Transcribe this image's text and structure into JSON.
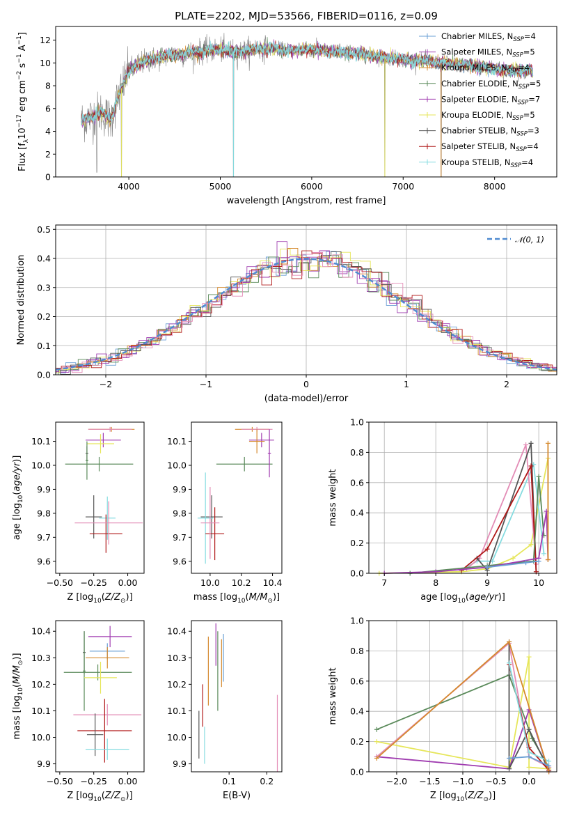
{
  "title": "PLATE=2202, MJD=53566, FIBERID=0116, z=0.09",
  "colors": {
    "CM": "#6a9fd4",
    "SM": "#a040b0",
    "KM": "#d58a2e",
    "CE": "#5a8a5a",
    "SE": "#a03cb0",
    "KE": "#e6e65a",
    "CS": "#555555",
    "SS": "#b01818",
    "KS": "#86dce0",
    "pink": "#e38cb6",
    "gray": "#808080",
    "fit": "#4e8ad0"
  },
  "chart_data": [
    {
      "id": "spectrum",
      "type": "line",
      "xlabel": "wavelength [Angstrom, rest frame]",
      "ylabel": "Flux [f_λ10^-17 erg cm^-2 s^-1 A^-1]",
      "xlim": [
        3200,
        8680
      ],
      "ylim": [
        0,
        13.2
      ],
      "xticks": [
        4000,
        5000,
        6000,
        7000,
        8000
      ],
      "yticks": [
        0,
        2,
        4,
        6,
        8,
        10,
        12
      ],
      "grid": false,
      "legend": {
        "position": "right",
        "entries": [
          {
            "base": "Chabrier MILES, N",
            "sub": "SSP",
            "tail": "=4",
            "color": "CM"
          },
          {
            "base": "Salpeter MILES, N",
            "sub": "SSP",
            "tail": "=5",
            "color": "SM"
          },
          {
            "base": "Kroupa MILES, N",
            "sub": "SSP",
            "tail": "=4",
            "color": "KM"
          },
          {
            "base": "Chabrier ELODIE, N",
            "sub": "SSP",
            "tail": "=5",
            "color": "CE"
          },
          {
            "base": "Salpeter ELODIE, N",
            "sub": "SSP",
            "tail": "=7",
            "color": "SE"
          },
          {
            "base": "Kroupa ELODIE, N",
            "sub": "SSP",
            "tail": "=5",
            "color": "KE"
          },
          {
            "base": "Chabrier STELIB, N",
            "sub": "SSP",
            "tail": "=3",
            "color": "CS"
          },
          {
            "base": "Salpeter STELIB, N",
            "sub": "SSP",
            "tail": "=4",
            "color": "SS"
          },
          {
            "base": "Kroupa STELIB, N",
            "sub": "SSP",
            "tail": "=4",
            "color": "KS"
          }
        ]
      },
      "continuum": [
        [
          3480,
          4.9
        ],
        [
          3600,
          5.3
        ],
        [
          3700,
          5.7
        ],
        [
          3800,
          5.0
        ],
        [
          3900,
          7.4
        ],
        [
          4000,
          9.3
        ],
        [
          4100,
          9.9
        ],
        [
          4200,
          10.2
        ],
        [
          4400,
          10.6
        ],
        [
          4600,
          10.8
        ],
        [
          4800,
          11.0
        ],
        [
          5000,
          11.2
        ],
        [
          5200,
          10.9
        ],
        [
          5400,
          11.3
        ],
        [
          5600,
          11.2
        ],
        [
          5800,
          11.1
        ],
        [
          6000,
          11.2
        ],
        [
          6200,
          11.0
        ],
        [
          6400,
          10.9
        ],
        [
          6600,
          10.7
        ],
        [
          6800,
          10.5
        ],
        [
          7000,
          10.3
        ],
        [
          7200,
          10.2
        ],
        [
          7400,
          10.0
        ],
        [
          7600,
          9.9
        ],
        [
          7800,
          9.7
        ],
        [
          8000,
          9.5
        ],
        [
          8200,
          9.3
        ],
        [
          8400,
          9.3
        ]
      ],
      "dips": [
        [
          5145,
          0
        ],
        [
          6800,
          0
        ],
        [
          7415,
          0
        ],
        [
          3920,
          0
        ],
        [
          3650,
          0.4
        ]
      ]
    },
    {
      "id": "residuals",
      "type": "histogram",
      "xlabel": "(data-model)/error",
      "ylabel": "Normed distribution",
      "xlim": [
        -2.5,
        2.5
      ],
      "ylim": [
        0,
        0.515
      ],
      "xticks": [
        -2,
        -1,
        0,
        1,
        2
      ],
      "yticks": [
        0.0,
        0.1,
        0.2,
        0.3,
        0.4,
        0.5
      ],
      "grid": true,
      "legend": {
        "position": "top-right",
        "label": "𝒩(0, 1)"
      },
      "bin_width": 0.1,
      "gaussian": {
        "mean": 0,
        "sigma": 1
      }
    },
    {
      "id": "age-vs-Z",
      "type": "errorbar",
      "xlabel": "Z [log10(Z/Z⊙)]",
      "ylabel": "age [log10(age/yr)]",
      "xlim": [
        -0.53,
        0.12
      ],
      "ylim": [
        9.55,
        10.18
      ],
      "xticks": [
        -0.5,
        -0.25,
        0.0
      ],
      "yticks": [
        9.6,
        9.7,
        9.8,
        9.9,
        10.0,
        10.1
      ],
      "grid": false,
      "points": [
        {
          "x": -0.12,
          "y": 10.15,
          "xerr": 0.17,
          "yerr": 0.01,
          "c": "KM"
        },
        {
          "x": -0.13,
          "y": 10.15,
          "xerr": 0.16,
          "yerr": 0.01,
          "c": "pink"
        },
        {
          "x": -0.18,
          "y": 10.105,
          "xerr": 0.13,
          "yerr": 0.03,
          "c": "SE"
        },
        {
          "x": -0.2,
          "y": 10.09,
          "xerr": 0.1,
          "yerr": 0.04,
          "c": "KE"
        },
        {
          "x": -0.21,
          "y": 10.005,
          "xerr": 0.25,
          "yerr": 0.03,
          "c": "CE"
        },
        {
          "x": -0.3,
          "y": 10.05,
          "xerr": 0.01,
          "yerr": 0.03,
          "c": "CS"
        },
        {
          "x": -0.25,
          "y": 9.785,
          "xerr": 0.06,
          "yerr": 0.09,
          "c": "CS"
        },
        {
          "x": -0.15,
          "y": 9.78,
          "xerr": 0.06,
          "yerr": 0.09,
          "c": "KS"
        },
        {
          "x": -0.16,
          "y": 9.715,
          "xerr": 0.12,
          "yerr": 0.08,
          "c": "SS"
        },
        {
          "x": -0.14,
          "y": 9.76,
          "xerr": 0.25,
          "yerr": 0.09,
          "c": "pink"
        },
        {
          "x": -0.3,
          "y": 10.02,
          "xerr": 0.01,
          "yerr": 0.08,
          "c": "CE"
        }
      ]
    },
    {
      "id": "age-vs-mass",
      "type": "errorbar",
      "xlabel": "mass [log10(M/M⊙)]",
      "ylabel": "",
      "xlim": [
        9.88,
        10.46
      ],
      "ylim": [
        9.55,
        10.18
      ],
      "xticks": [
        10.0,
        10.2,
        10.4
      ],
      "yticks": [
        9.6,
        9.7,
        9.8,
        9.9,
        10.0,
        10.1
      ],
      "grid": false,
      "points": [
        {
          "x": 10.27,
          "y": 10.15,
          "xerr": 0.11,
          "yerr": 0.01,
          "c": "KM"
        },
        {
          "x": 10.3,
          "y": 10.15,
          "xerr": 0.1,
          "yerr": 0.01,
          "c": "pink"
        },
        {
          "x": 10.33,
          "y": 10.105,
          "xerr": 0.08,
          "yerr": 0.03,
          "c": "SE"
        },
        {
          "x": 10.3,
          "y": 10.1,
          "xerr": 0.05,
          "yerr": 0.05,
          "c": "KM"
        },
        {
          "x": 10.22,
          "y": 10.005,
          "xerr": 0.18,
          "yerr": 0.03,
          "c": "CE"
        },
        {
          "x": 10.38,
          "y": 10.05,
          "xerr": 0.01,
          "yerr": 0.1,
          "c": "SE"
        },
        {
          "x": 10.01,
          "y": 9.785,
          "xerr": 0.07,
          "yerr": 0.09,
          "c": "CS"
        },
        {
          "x": 9.97,
          "y": 9.78,
          "xerr": 0.05,
          "yerr": 0.19,
          "c": "KS"
        },
        {
          "x": 10.03,
          "y": 9.715,
          "xerr": 0.06,
          "yerr": 0.11,
          "c": "SS"
        },
        {
          "x": 10.0,
          "y": 9.76,
          "xerr": 0.06,
          "yerr": 0.15,
          "c": "pink"
        }
      ]
    },
    {
      "id": "weight-vs-age",
      "type": "line",
      "xlabel": "age [log10(age/yr)]",
      "ylabel": "mass weight",
      "xlim": [
        6.7,
        10.35
      ],
      "ylim": [
        0,
        1.0
      ],
      "xticks": [
        7,
        8,
        9,
        10
      ],
      "yticks": [
        0.0,
        0.2,
        0.4,
        0.6,
        0.8,
        1.0
      ],
      "grid": true,
      "series": [
        {
          "c": "KE",
          "x": [
            6.9,
            8.5,
            9.0,
            9.5,
            9.85,
            10.18,
            10.18
          ],
          "y": [
            0.0,
            0.01,
            0.03,
            0.1,
            0.19,
            0.76,
            0.09
          ]
        },
        {
          "c": "KS",
          "x": [
            8.5,
            8.8,
            9.1,
            9.9,
            10.1
          ],
          "y": [
            0.02,
            0.08,
            0.08,
            0.72,
            0.13
          ]
        },
        {
          "c": "pink",
          "x": [
            8.6,
            8.85,
            9.75,
            9.95
          ],
          "y": [
            0.03,
            0.1,
            0.85,
            0.06
          ]
        },
        {
          "c": "CS",
          "x": [
            8.8,
            9.0,
            9.85,
            9.95
          ],
          "y": [
            0.1,
            0.02,
            0.86,
            0.01
          ]
        },
        {
          "c": "SS",
          "x": [
            8.5,
            9.0,
            9.85,
            9.95
          ],
          "y": [
            0.02,
            0.16,
            0.71,
            0.01
          ]
        },
        {
          "c": "CE",
          "x": [
            7.5,
            9.0,
            9.9,
            10.0,
            10.1
          ],
          "y": [
            0.0,
            0.05,
            0.08,
            0.64,
            0.25
          ]
        },
        {
          "c": "SE",
          "x": [
            7.0,
            8.0,
            9.0,
            10.0,
            10.15,
            10.18
          ],
          "y": [
            0.0,
            0.01,
            0.04,
            0.1,
            0.41,
            0.09
          ]
        },
        {
          "c": "KM",
          "x": [
            10.18,
            10.18
          ],
          "y": [
            0.09,
            0.86
          ]
        },
        {
          "c": "CM",
          "x": [
            9.0,
            9.75,
            10.0
          ],
          "y": [
            0.04,
            0.07,
            0.08
          ]
        }
      ]
    },
    {
      "id": "mass-vs-Z",
      "type": "errorbar",
      "xlabel": "Z [log10(Z/Z⊙)]",
      "ylabel": "mass [log10(M/M⊙)]",
      "xlim": [
        -0.53,
        0.12
      ],
      "ylim": [
        9.87,
        10.44
      ],
      "xticks": [
        -0.5,
        -0.25,
        0.0
      ],
      "yticks": [
        9.9,
        10.0,
        10.1,
        10.2,
        10.3,
        10.4
      ],
      "grid": false,
      "points": [
        {
          "x": -0.13,
          "y": 10.38,
          "xerr": 0.16,
          "yerr": 0.04,
          "c": "SE"
        },
        {
          "x": -0.15,
          "y": 10.325,
          "xerr": 0.13,
          "yerr": 0.03,
          "c": "CM"
        },
        {
          "x": -0.15,
          "y": 10.3,
          "xerr": 0.16,
          "yerr": 0.04,
          "c": "KM"
        },
        {
          "x": -0.32,
          "y": 10.32,
          "xerr": 0.01,
          "yerr": 0.08,
          "c": "CS"
        },
        {
          "x": -0.32,
          "y": 10.25,
          "xerr": 0.01,
          "yerr": 0.15,
          "c": "CE"
        },
        {
          "x": -0.22,
          "y": 10.245,
          "xerr": 0.25,
          "yerr": 0.03,
          "c": "CE"
        },
        {
          "x": -0.2,
          "y": 10.225,
          "xerr": 0.12,
          "yerr": 0.06,
          "c": "KE"
        },
        {
          "x": -0.15,
          "y": 10.085,
          "xerr": 0.25,
          "yerr": 0.04,
          "c": "pink"
        },
        {
          "x": -0.17,
          "y": 10.025,
          "xerr": 0.2,
          "yerr": 0.12,
          "c": "SS"
        },
        {
          "x": -0.24,
          "y": 10.01,
          "xerr": 0.06,
          "yerr": 0.08,
          "c": "CS"
        },
        {
          "x": -0.15,
          "y": 9.955,
          "xerr": 0.16,
          "yerr": 0.04,
          "c": "KS"
        }
      ]
    },
    {
      "id": "mass-vs-EBV",
      "type": "errorbar",
      "xlabel": "E(B-V)",
      "ylabel": "",
      "xlim": [
        0.0,
        0.24
      ],
      "ylim": [
        9.87,
        10.44
      ],
      "xticks": [
        0.1,
        0.2
      ],
      "yticks": [
        9.9,
        10.0,
        10.1,
        10.2,
        10.3,
        10.4
      ],
      "grid": false,
      "points": [
        {
          "x": 0.065,
          "y": 10.35,
          "xerr": 0.0,
          "yerr": 0.08,
          "c": "SE"
        },
        {
          "x": 0.085,
          "y": 10.3,
          "xerr": 0.0,
          "yerr": 0.09,
          "c": "CM"
        },
        {
          "x": 0.08,
          "y": 10.28,
          "xerr": 0.0,
          "yerr": 0.09,
          "c": "KM"
        },
        {
          "x": 0.07,
          "y": 10.25,
          "xerr": 0.0,
          "yerr": 0.15,
          "c": "CE"
        },
        {
          "x": 0.045,
          "y": 10.25,
          "xerr": 0.0,
          "yerr": 0.13,
          "c": "KM"
        },
        {
          "x": 0.03,
          "y": 10.12,
          "xerr": 0.0,
          "yerr": 0.08,
          "c": "SS"
        },
        {
          "x": 0.02,
          "y": 10.01,
          "xerr": 0.0,
          "yerr": 0.09,
          "c": "CS"
        },
        {
          "x": 0.035,
          "y": 9.97,
          "xerr": 0.0,
          "yerr": 0.07,
          "c": "KS"
        },
        {
          "x": 0.228,
          "y": 10.0,
          "xerr": 0.0,
          "yerr": 0.16,
          "c": "pink"
        }
      ]
    },
    {
      "id": "weight-vs-Z",
      "type": "line",
      "xlabel": "Z [log10(Z/Z⊙)]",
      "ylabel": "mass weight",
      "xlim": [
        -2.42,
        0.42
      ],
      "ylim": [
        0,
        1.0
      ],
      "xticks": [
        -2.0,
        -1.5,
        -1.0,
        -0.5,
        0.0
      ],
      "yticks": [
        0.0,
        0.2,
        0.4,
        0.6,
        0.8,
        1.0
      ],
      "grid": true,
      "series": [
        {
          "c": "CE",
          "x": [
            -2.3,
            -0.3,
            0.05,
            0.3
          ],
          "y": [
            0.28,
            0.64,
            0.22,
            0.03
          ]
        },
        {
          "c": "KE",
          "x": [
            -2.3,
            -0.3,
            0.0,
            0.0,
            0.3
          ],
          "y": [
            0.2,
            0.03,
            0.76,
            0.03,
            0.02
          ]
        },
        {
          "c": "SE",
          "x": [
            -2.3,
            -0.3,
            0.0,
            0.3
          ],
          "y": [
            0.1,
            0.02,
            0.41,
            0.0
          ]
        },
        {
          "c": "pink",
          "x": [
            -2.3,
            -0.3,
            0.0,
            0.3
          ],
          "y": [
            0.1,
            0.85,
            0.1,
            0.03
          ]
        },
        {
          "c": "CS",
          "x": [
            -0.3,
            -0.3,
            0.0,
            0.3
          ],
          "y": [
            0.86,
            0.02,
            0.28,
            0.01
          ]
        },
        {
          "c": "SS",
          "x": [
            -0.3,
            0.0,
            0.3
          ],
          "y": [
            0.71,
            0.16,
            0.01
          ]
        },
        {
          "c": "KS",
          "x": [
            -0.3,
            0.0,
            0.3
          ],
          "y": [
            0.72,
            0.13,
            0.07
          ]
        },
        {
          "c": "KM",
          "x": [
            -2.3,
            -0.3,
            0.3
          ],
          "y": [
            0.09,
            0.86,
            0.0
          ]
        },
        {
          "c": "CM",
          "x": [
            -0.3,
            0.0,
            0.3
          ],
          "y": [
            0.09,
            0.1,
            0.04
          ]
        }
      ]
    }
  ]
}
